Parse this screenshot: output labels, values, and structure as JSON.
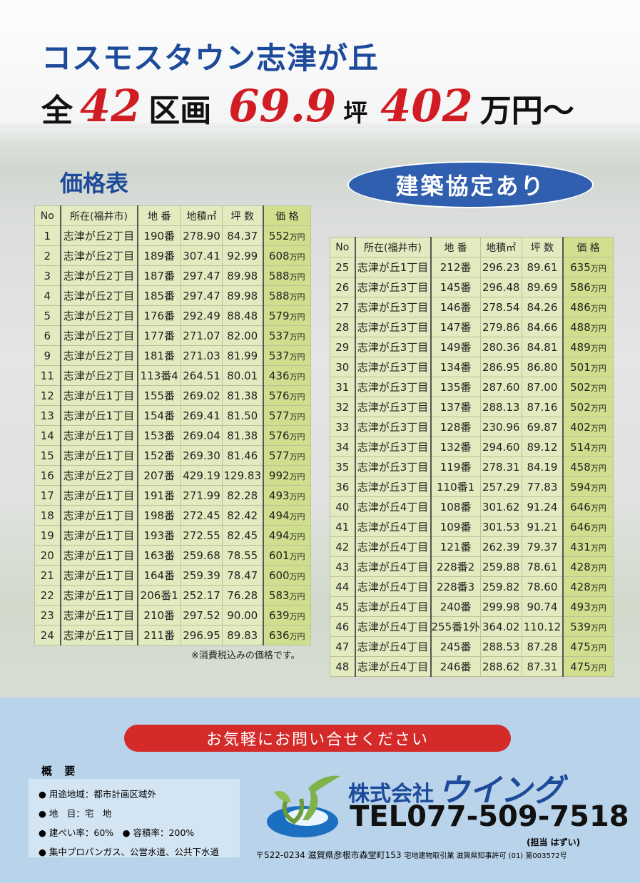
{
  "header": {
    "title": "コスモスタウン志津が丘",
    "line2": {
      "prefix": "全",
      "lots": "42",
      "lots_unit": "区画",
      "tsubo": "69.9",
      "tsubo_unit": "坪",
      "price": "402",
      "price_unit": "万円～"
    }
  },
  "price_table_title": "価格表",
  "agreement_badge": "建築協定あり",
  "columns": [
    "No",
    "所在(福井市)",
    "地 番",
    "地積㎡",
    "坪 数",
    "価 格"
  ],
  "price_unit": "万円",
  "left_rows": [
    [
      "1",
      "志津が丘2丁目",
      "190番",
      "278.90",
      "84.37",
      "552"
    ],
    [
      "2",
      "志津が丘2丁目",
      "189番",
      "307.41",
      "92.99",
      "608"
    ],
    [
      "3",
      "志津が丘2丁目",
      "187番",
      "297.47",
      "89.98",
      "588"
    ],
    [
      "4",
      "志津が丘2丁目",
      "185番",
      "297.47",
      "89.98",
      "588"
    ],
    [
      "5",
      "志津が丘2丁目",
      "176番",
      "292.49",
      "88.48",
      "579"
    ],
    [
      "6",
      "志津が丘2丁目",
      "177番",
      "271.07",
      "82.00",
      "537"
    ],
    [
      "9",
      "志津が丘2丁目",
      "181番",
      "271.03",
      "81.99",
      "537"
    ],
    [
      "11",
      "志津が丘2丁目",
      "113番4",
      "264.51",
      "80.01",
      "436"
    ],
    [
      "12",
      "志津が丘1丁目",
      "155番",
      "269.02",
      "81.38",
      "576"
    ],
    [
      "13",
      "志津が丘1丁目",
      "154番",
      "269.41",
      "81.50",
      "577"
    ],
    [
      "14",
      "志津が丘1丁目",
      "153番",
      "269.04",
      "81.38",
      "576"
    ],
    [
      "15",
      "志津が丘1丁目",
      "152番",
      "269.30",
      "81.46",
      "577"
    ],
    [
      "16",
      "志津が丘2丁目",
      "207番",
      "429.19",
      "129.83",
      "992"
    ],
    [
      "17",
      "志津が丘1丁目",
      "191番",
      "271.99",
      "82.28",
      "493"
    ],
    [
      "18",
      "志津が丘1丁目",
      "198番",
      "272.45",
      "82.42",
      "494"
    ],
    [
      "19",
      "志津が丘1丁目",
      "193番",
      "272.55",
      "82.45",
      "494"
    ],
    [
      "20",
      "志津が丘1丁目",
      "163番",
      "259.68",
      "78.55",
      "601"
    ],
    [
      "21",
      "志津が丘1丁目",
      "164番",
      "259.39",
      "78.47",
      "600"
    ],
    [
      "22",
      "志津が丘1丁目",
      "206番1",
      "252.17",
      "76.28",
      "583"
    ],
    [
      "23",
      "志津が丘1丁目",
      "210番",
      "297.52",
      "90.00",
      "639"
    ],
    [
      "24",
      "志津が丘1丁目",
      "211番",
      "296.95",
      "89.83",
      "636"
    ]
  ],
  "right_rows": [
    [
      "25",
      "志津が丘1丁目",
      "212番",
      "296.23",
      "89.61",
      "635"
    ],
    [
      "26",
      "志津が丘3丁目",
      "145番",
      "296.48",
      "89.69",
      "586"
    ],
    [
      "27",
      "志津が丘3丁目",
      "146番",
      "278.54",
      "84.26",
      "486"
    ],
    [
      "28",
      "志津が丘3丁目",
      "147番",
      "279.86",
      "84.66",
      "488"
    ],
    [
      "29",
      "志津が丘3丁目",
      "149番",
      "280.36",
      "84.81",
      "489"
    ],
    [
      "30",
      "志津が丘3丁目",
      "134番",
      "286.95",
      "86.80",
      "501"
    ],
    [
      "31",
      "志津が丘3丁目",
      "135番",
      "287.60",
      "87.00",
      "502"
    ],
    [
      "32",
      "志津が丘3丁目",
      "137番",
      "288.13",
      "87.16",
      "502"
    ],
    [
      "33",
      "志津が丘3丁目",
      "128番",
      "230.96",
      "69.87",
      "402"
    ],
    [
      "34",
      "志津が丘3丁目",
      "132番",
      "294.60",
      "89.12",
      "514"
    ],
    [
      "35",
      "志津が丘3丁目",
      "119番",
      "278.31",
      "84.19",
      "458"
    ],
    [
      "36",
      "志津が丘3丁目",
      "110番1",
      "257.29",
      "77.83",
      "594"
    ],
    [
      "40",
      "志津が丘4丁目",
      "108番",
      "301.62",
      "91.24",
      "646"
    ],
    [
      "41",
      "志津が丘4丁目",
      "109番",
      "301.53",
      "91.21",
      "646"
    ],
    [
      "42",
      "志津が丘4丁目",
      "121番",
      "262.39",
      "79.37",
      "431"
    ],
    [
      "43",
      "志津が丘4丁目",
      "228番2",
      "259.88",
      "78.61",
      "428"
    ],
    [
      "44",
      "志津が丘4丁目",
      "228番3",
      "259.82",
      "78.60",
      "428"
    ],
    [
      "45",
      "志津が丘4丁目",
      "240番",
      "299.98",
      "90.74",
      "493"
    ],
    [
      "46",
      "志津が丘4丁目",
      "255番1外",
      "364.02",
      "110.12",
      "539"
    ],
    [
      "47",
      "志津が丘4丁目",
      "245番",
      "288.53",
      "87.28",
      "475"
    ],
    [
      "48",
      "志津が丘4丁目",
      "246番",
      "288.62",
      "87.31",
      "475"
    ]
  ],
  "tax_note": "※消費税込みの価格です。",
  "cta": "お気軽にお問い合せください",
  "overview": {
    "title": "概 要",
    "items": [
      "● 用途地域：都市計画区域外",
      "● 地　目：宅　地",
      "● 建ぺい率：60%　● 容積率：200%",
      "● 集中プロパンガス、公営水道、公共下水道"
    ]
  },
  "company": {
    "prefix": "株式会社",
    "name": "ウイング",
    "tel": "TEL077-509-7518",
    "contact": "(担当 はずい)",
    "address": "〒522-0234 滋賀県彦根市森堂町153",
    "license": "宅地建物取引業 滋賀県知事許可 (01) 第003572号"
  },
  "colors": {
    "title_blue": "#1e4a9a",
    "accent_red": "#d21c24",
    "table_green": "#e2ebbf",
    "price_green": "#cfdf8e",
    "footer_blue": "#b8d3ea"
  }
}
